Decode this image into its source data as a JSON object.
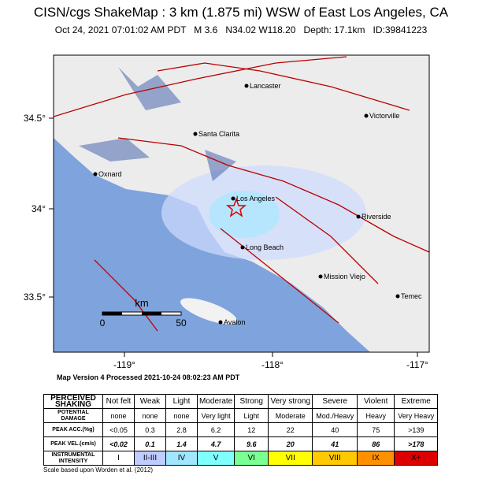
{
  "header": {
    "title": "CISN/cgs ShakeMap : 3 km (1.875 mi) WSW of East Los Angeles, CA",
    "subtitle": "Oct 24, 2021 07:01:02 AM PDT   M 3.6   N34.02 W118.20   Depth: 17.1km   ID:39841223"
  },
  "map": {
    "lat_labels": [
      "34.5°",
      "34°",
      "33.5°"
    ],
    "lon_labels": [
      "-119°",
      "-118°",
      "-117°"
    ],
    "cities": [
      "Lancaster",
      "Victorville",
      "Santa Clarita",
      "Oxnard",
      "Los Angeles",
      "Riverside",
      "Long Beach",
      "Mission Viejo",
      "Temec",
      "Avalon"
    ],
    "scale": {
      "unit": "km",
      "ticks": [
        "0",
        "50"
      ]
    }
  },
  "map_version": "Map Version 4 Processed 2021-10-24 08:02:23 AM PDT",
  "table": {
    "rows": [
      [
        "PERCEIVED SHAKING",
        "Not felt",
        "Weak",
        "Light",
        "Moderate",
        "Strong",
        "Very strong",
        "Severe",
        "Violent",
        "Extreme"
      ],
      [
        "POTENTIAL DAMAGE",
        "none",
        "none",
        "none",
        "Very light",
        "Light",
        "Moderate",
        "Mod./Heavy",
        "Heavy",
        "Very Heavy"
      ],
      [
        "PEAK ACC.(%g)",
        "<0.05",
        "0.3",
        "2.8",
        "6.2",
        "12",
        "22",
        "40",
        "75",
        ">139"
      ],
      [
        "PEAK VEL.(cm/s)",
        "<0.02",
        "0.1",
        "1.4",
        "4.7",
        "9.6",
        "20",
        "41",
        "86",
        ">178"
      ],
      [
        "INSTRUMENTAL INTENSITY",
        "I",
        "II-III",
        "IV",
        "V",
        "VI",
        "VII",
        "VIII",
        "IX",
        "X+"
      ]
    ]
  },
  "footnote": "Scale based upon Worden et al. (2012)"
}
